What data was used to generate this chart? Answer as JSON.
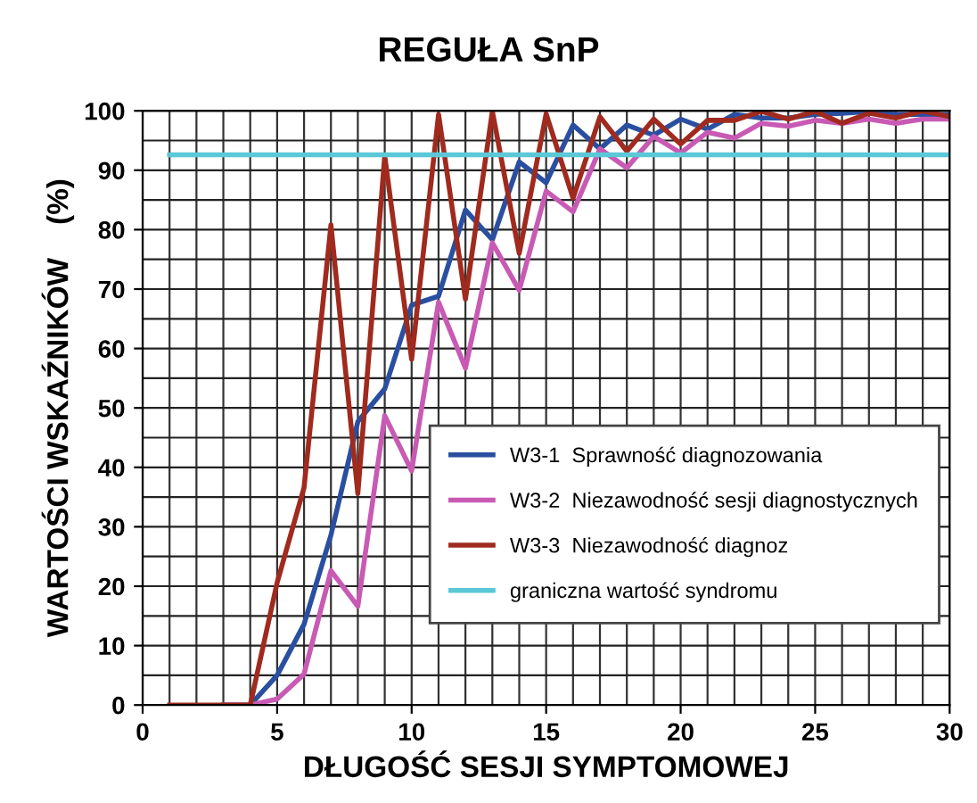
{
  "chart_data": {
    "type": "line",
    "title": "REGUŁA SnP",
    "xlabel": "DŁUGOŚĆ SESJI SYMPTOMOWEJ",
    "ylabel": "WARTOŚCI WSKAŹNIKÓW    (%)",
    "x": [
      1,
      2,
      3,
      4,
      5,
      6,
      7,
      8,
      9,
      10,
      11,
      12,
      13,
      14,
      15,
      16,
      17,
      18,
      19,
      20,
      21,
      22,
      23,
      24,
      25,
      26,
      27,
      28,
      29,
      30
    ],
    "series": [
      {
        "name": "W3-1  Sprawność diagnozowania",
        "color": "#2a4fa0",
        "values": [
          null,
          null,
          0,
          0,
          5,
          13.6,
          28.6,
          47.7,
          53.2,
          67.3,
          68.8,
          83.3,
          78.3,
          91.4,
          87.9,
          97.6,
          93.6,
          97.6,
          95.9,
          98.6,
          96.9,
          99.4,
          98.8,
          98.8,
          99.4,
          99.6,
          99.9,
          99.4,
          99.4,
          99.4
        ]
      },
      {
        "name": "W3-2  Niezawodność sesji diagnostycznych",
        "color": "#c85ab4",
        "values": [
          null,
          null,
          0,
          0,
          1,
          5.2,
          22.6,
          16.6,
          48.7,
          39.4,
          67.8,
          56.7,
          77.8,
          69.8,
          86.5,
          83,
          93.6,
          90.4,
          95.7,
          92.9,
          96.4,
          95.4,
          97.9,
          97.4,
          98.4,
          97.9,
          98.6,
          97.9,
          98.6,
          98.6
        ]
      },
      {
        "name": "W3-3  Niezawodność diagnoz",
        "color": "#a02a1e",
        "values": [
          0,
          0,
          0,
          0,
          20.6,
          36.6,
          80.8,
          35.6,
          92.4,
          58.2,
          99.4,
          68.3,
          99.9,
          76,
          99.5,
          85.3,
          99,
          93.2,
          98.6,
          94.4,
          98.4,
          98.4,
          99.9,
          98.6,
          99.9,
          97.9,
          99.6,
          98.8,
          100,
          99
        ]
      }
    ],
    "ref_lines": [
      {
        "axis": "y",
        "value": 92.6,
        "label": "graniczna wartość syndromu",
        "color": "#5bc8d8"
      }
    ],
    "xlim": [
      0,
      30
    ],
    "xticks": [
      0,
      5,
      10,
      15,
      20,
      25,
      30
    ],
    "ylim": [
      0,
      100
    ],
    "yticks": [
      0,
      10,
      20,
      30,
      40,
      50,
      60,
      70,
      80,
      90,
      100
    ],
    "grid": true,
    "legend": "bottom right",
    "line_style": "solid",
    "marker": "none"
  }
}
